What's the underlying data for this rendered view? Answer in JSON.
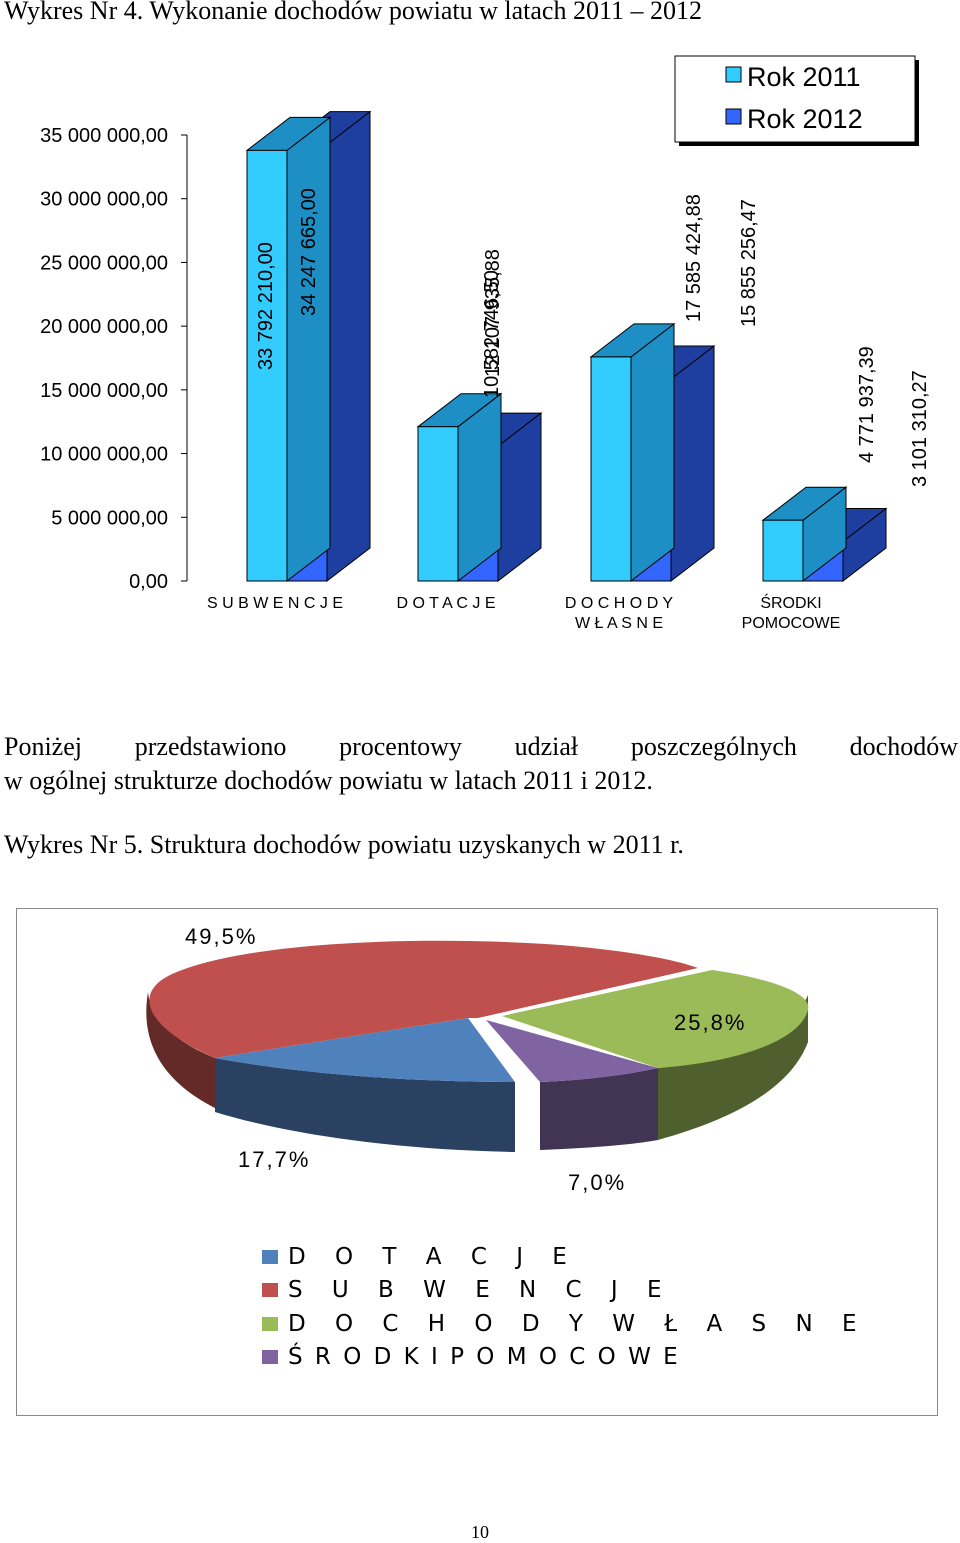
{
  "heading_chart1": "Wykres Nr 4. Wykonanie dochodów powiatu w latach 2011 – 2012",
  "paragraph": {
    "line1": "Poniżej przedstawiono procentowy udział poszczególnych dochodów",
    "line2": "w ogólnej strukturze dochodów powiatu w latach 2011 i 2012."
  },
  "heading_chart2": "Wykres Nr 5. Struktura dochodów powiatu uzyskanych w 2011 r.",
  "page_number": "10",
  "chart_data": [
    {
      "type": "bar",
      "style": "3d-clustered-column",
      "categories": [
        "S U B W E N C J E",
        "D O T A C J E",
        "D O C H O D Y|W Ł A S N E",
        "ŚRODKI|POMOCOWE"
      ],
      "series": [
        {
          "name": "Rok 2011",
          "color": "#33ccff",
          "side_color": "#1e8fc4",
          "values": [
            33792210.0,
            12107935.88,
            17585424.88,
            4771937.39
          ],
          "labels": [
            "33 792 210,00",
            "12 107 935,88",
            "17 585 424,88",
            "4 771 937,39"
          ]
        },
        {
          "name": "Rok 2012",
          "color": "#3366ff",
          "side_color": "#1f3fa0",
          "values": [
            34247665.0,
            10582746.5,
            15855256.47,
            3101310.27
          ],
          "labels": [
            "34 247 665,00",
            "10 582 746,50",
            "15 855 256,47",
            "3 101 310,27"
          ]
        }
      ],
      "ylim": [
        0,
        35000000
      ],
      "yticks": [
        "0,00",
        "5 000 000,00",
        "10 000 000,00",
        "15 000 000,00",
        "20 000 000,00",
        "25 000 000,00",
        "30 000 000,00",
        "35 000 000,00"
      ],
      "legend_position": "top-right",
      "grid": false
    },
    {
      "type": "pie",
      "style": "3d-exploded",
      "slices": [
        {
          "name": "D O T A C J E",
          "value": 17.7,
          "label": "17,7%",
          "color": "#4f81bd",
          "side_color": "#2a4161"
        },
        {
          "name": "S U B W E N C J E",
          "value": 49.5,
          "label": "49,5%",
          "color": "#c0504d",
          "side_color": "#632a28"
        },
        {
          "name": "D O C H O D Y  W Ł A S N E",
          "value": 25.8,
          "label": "25,8%",
          "color": "#9bbb59",
          "side_color": "#4f5f2e"
        },
        {
          "name": "Ś R O D K I  P O M O C O W E",
          "value": 7.0,
          "label": "7,0%",
          "color": "#8064a2",
          "side_color": "#423453"
        }
      ],
      "legend_position": "bottom"
    }
  ]
}
